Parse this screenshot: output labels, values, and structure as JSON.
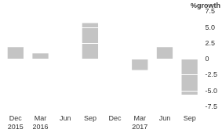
{
  "chart_data": {
    "type": "bar",
    "title": "%growth",
    "categories": [
      "Dec 2015",
      "Mar 2016",
      "Jun",
      "Sep",
      "Dec",
      "Mar 2017",
      "Jun",
      "Sep"
    ],
    "values": [
      1.9,
      0.9,
      0,
      5.7,
      0,
      -1.7,
      1.9,
      -5.6
    ],
    "color": "#c4c4c4",
    "ylim": [
      -7.5,
      7.5
    ],
    "yticks": [
      -7.5,
      {
        "value": -5,
        "label": "-5.0"
      },
      -2.5,
      0,
      2.5,
      {
        "value": 5,
        "label": "5.0"
      },
      7.5
    ],
    "grid": true
  }
}
